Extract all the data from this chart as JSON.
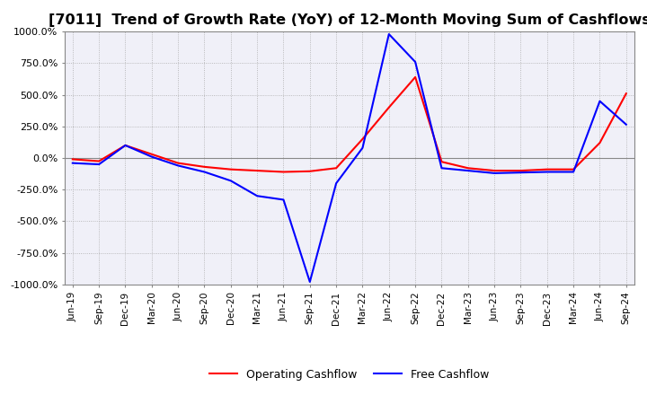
{
  "title": "[7011]  Trend of Growth Rate (YoY) of 12-Month Moving Sum of Cashflows",
  "title_fontsize": 11.5,
  "legend_entries": [
    "Operating Cashflow",
    "Free Cashflow"
  ],
  "legend_colors": [
    "#ff0000",
    "#0000ff"
  ],
  "ylim": [
    -1000,
    1000
  ],
  "yticks": [
    -1000,
    -750,
    -500,
    -250,
    0,
    250,
    500,
    750,
    1000
  ],
  "ytick_labels": [
    "-1000.0%",
    "-750.0%",
    "-500.0%",
    "-250.0%",
    "0.0%",
    "250.0%",
    "500.0%",
    "750.0%",
    "1000.0%"
  ],
  "background_color": "#ffffff",
  "plot_bg_color": "#f0f0f8",
  "grid_color": "#aaaaaa",
  "dates": [
    "Jun-19",
    "Sep-19",
    "Dec-19",
    "Mar-20",
    "Jun-20",
    "Sep-20",
    "Dec-20",
    "Mar-21",
    "Jun-21",
    "Sep-21",
    "Dec-21",
    "Mar-22",
    "Jun-22",
    "Sep-22",
    "Dec-22",
    "Mar-23",
    "Jun-23",
    "Sep-23",
    "Dec-23",
    "Mar-24",
    "Jun-24",
    "Sep-24"
  ],
  "operating_cashflow": [
    -10,
    -25,
    100,
    30,
    -40,
    -70,
    -90,
    -100,
    -110,
    -105,
    -80,
    150,
    400,
    640,
    -30,
    -80,
    -100,
    -100,
    -90,
    -90,
    120,
    510
  ],
  "free_cashflow": [
    -40,
    -50,
    100,
    10,
    -60,
    -110,
    -180,
    -300,
    -330,
    -980,
    -200,
    80,
    980,
    760,
    -80,
    -100,
    -120,
    -115,
    -110,
    -110,
    450,
    265
  ]
}
